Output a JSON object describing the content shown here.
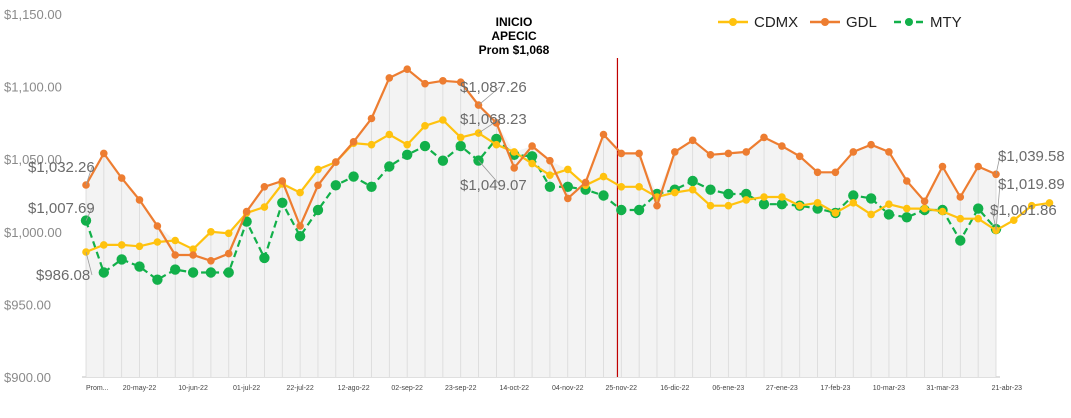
{
  "chart_data": {
    "type": "line",
    "ylim": [
      900,
      1150
    ],
    "y_ticks": [
      "$900.00",
      "$950.00",
      "$1,000.00",
      "$1,050.00",
      "$1,100.00",
      "$1,150.00"
    ],
    "x_tick_labels": [
      "Prom...",
      "20-may-22",
      "10-jun-22",
      "01-jul-22",
      "22-jul-22",
      "12-ago-22",
      "02-sep-22",
      "23-sep-22",
      "14-oct-22",
      "04-nov-22",
      "25-nov-22",
      "16-dic-22",
      "06-ene-23",
      "27-ene-23",
      "17-feb-23",
      "10-mar-23",
      "31-mar-23",
      "21-abr-23"
    ],
    "legend_position": "top-right",
    "grid": "vertical drop lines",
    "annotation": {
      "lines": [
        "INICIO",
        "APECIC",
        "Prom $1,068"
      ],
      "index": 29,
      "color": "#c00000"
    },
    "series": [
      {
        "name": "CDMX",
        "color": "#ffc20e",
        "dash": false,
        "values": [
          986.08,
          991,
          991,
          990,
          993,
          994,
          988,
          1000,
          999,
          1013,
          1017,
          1033,
          1027,
          1043,
          1048,
          1061,
          1060,
          1067,
          1060,
          1073,
          1077,
          1065,
          1068,
          1060,
          1055,
          1047,
          1039,
          1043,
          1032,
          1038,
          1031,
          1031,
          1024,
          1027,
          1029,
          1018,
          1018,
          1022,
          1024,
          1024,
          1018,
          1020,
          1013,
          1020,
          1012,
          1019,
          1016,
          1016,
          1014,
          1009,
          1009,
          1001,
          1008,
          1018,
          1019.89
        ]
      },
      {
        "name": "GDL",
        "color": "#ed7d31",
        "dash": false,
        "values": [
          1032.26,
          1054,
          1037,
          1022,
          1004,
          984,
          984,
          980,
          985,
          1014,
          1031,
          1035,
          1004,
          1032,
          1048,
          1062,
          1078,
          1106,
          1112,
          1102,
          1104,
          1103,
          1087.26,
          1075,
          1044,
          1059,
          1049,
          1023,
          1034,
          1067,
          1054,
          1054,
          1018,
          1055,
          1063,
          1053,
          1054,
          1055,
          1065,
          1059,
          1052,
          1041,
          1041,
          1055,
          1060,
          1055,
          1035,
          1021,
          1045,
          1024,
          1045,
          1039.58
        ]
      },
      {
        "name": "MTY",
        "color": "#12b04a",
        "dash": true,
        "values": [
          1007.69,
          972,
          981,
          976,
          967,
          974,
          972,
          972,
          972,
          1007,
          982,
          1020,
          997,
          1015,
          1032,
          1038,
          1031,
          1045,
          1053,
          1059,
          1049,
          1059,
          1049.07,
          1064,
          1053,
          1052,
          1031,
          1031,
          1029,
          1025,
          1015,
          1015,
          1026,
          1029,
          1035,
          1029,
          1026,
          1026,
          1019,
          1019,
          1018,
          1016,
          1013,
          1025,
          1023,
          1012,
          1010,
          1015,
          1015,
          994,
          1016,
          1001.86
        ]
      }
    ],
    "value_labels": [
      "$1,032.26",
      "$1,007.69",
      "$986.08",
      "$1,087.26",
      "$1,068.23",
      "$1,049.07",
      "$1,039.58",
      "$1,019.89",
      "$1,001.86"
    ]
  }
}
